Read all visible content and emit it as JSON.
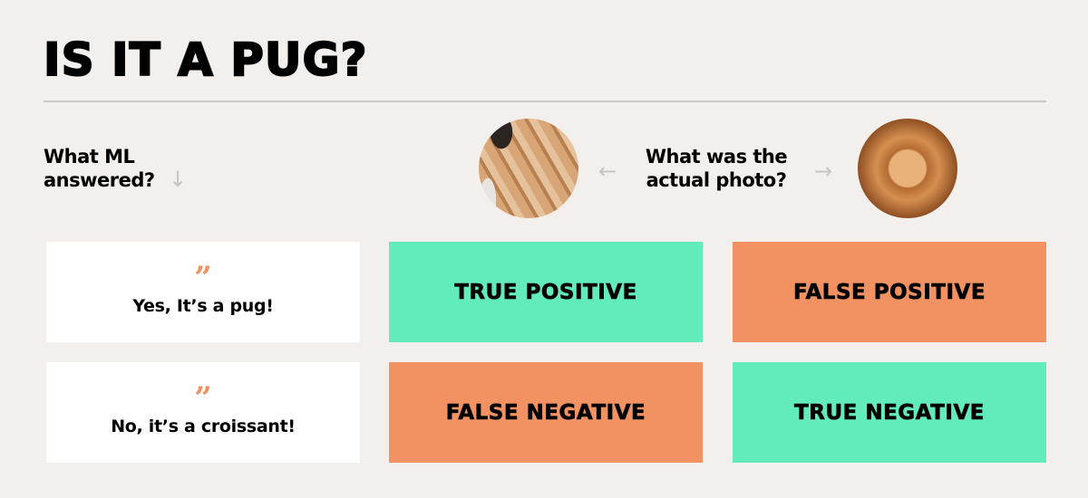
{
  "title": "IS IT A PUG?",
  "row_question": "What ML answered?",
  "row_question_lines": [
    "What ML",
    "answered?"
  ],
  "column_question_lines": [
    "What was the",
    "actual photo?"
  ],
  "columns": [
    {
      "image": "pug photo"
    },
    {
      "image": "croissant photo"
    }
  ],
  "rows": [
    {
      "answer": "Yes, It’s a pug!",
      "cells": [
        "TRUE POSITIVE",
        "FALSE POSITIVE"
      ]
    },
    {
      "answer": "No, it’s a croissant!",
      "cells": [
        "FALSE NEGATIVE",
        "TRUE NEGATIVE"
      ]
    }
  ],
  "quote_glyph": "”",
  "icons": {
    "down": "arrow-down-icon",
    "left": "arrow-left-icon",
    "right": "arrow-right-icon"
  },
  "colors": {
    "correct": "#62ebbb",
    "incorrect": "#f29263",
    "quote": "#f0905e",
    "background": "#f3efec"
  }
}
